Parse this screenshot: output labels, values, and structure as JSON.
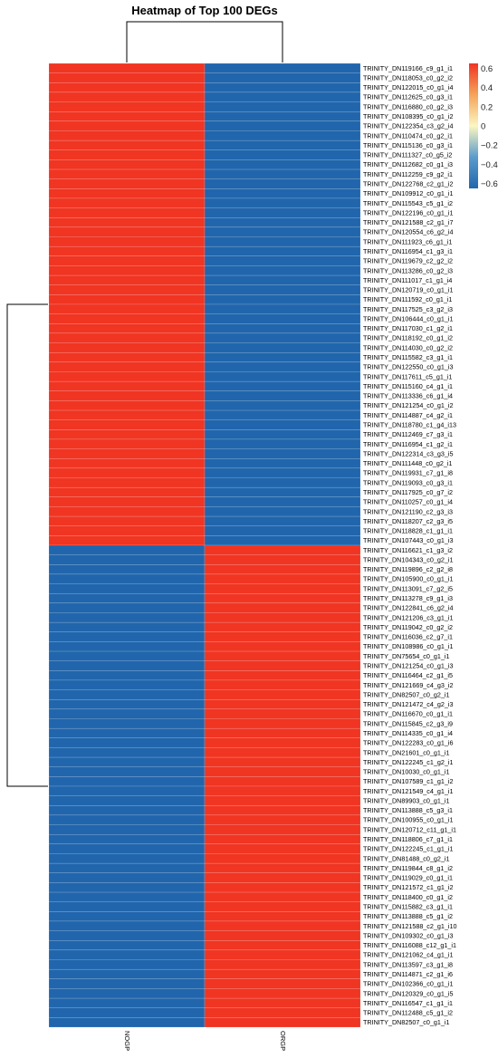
{
  "chart_data": {
    "type": "heatmap",
    "title": "Heatmap of Top 100 DEGs",
    "columns": [
      "NOGP",
      "ORGP"
    ],
    "rows": [
      "TRINITY_DN119166_c9_g1_i1",
      "TRINITY_DN118053_c0_g2_i2",
      "TRINITY_DN122015_c0_g1_i4",
      "TRINITY_DN112625_c0_g3_i1",
      "TRINITY_DN116880_c0_g2_i3",
      "TRINITY_DN108395_c0_g1_i2",
      "TRINITY_DN122354_c3_g2_i4",
      "TRINITY_DN110474_c0_g2_i1",
      "TRINITY_DN115136_c0_g3_i1",
      "TRINITY_DN111327_c0_g5_i2",
      "TRINITY_DN112682_c0_g1_i3",
      "TRINITY_DN112259_c9_g2_i1",
      "TRINITY_DN122768_c2_g1_i2",
      "TRINITY_DN109912_c0_g1_i1",
      "TRINITY_DN115543_c5_g1_i2",
      "TRINITY_DN122196_c0_g1_i1",
      "TRINITY_DN121588_c2_g1_i7",
      "TRINITY_DN120554_c6_g2_i4",
      "TRINITY_DN111923_c6_g1_i1",
      "TRINITY_DN116954_c1_g3_i1",
      "TRINITY_DN119679_c2_g2_i2",
      "TRINITY_DN113286_c0_g2_i3",
      "TRINITY_DN111017_c1_g1_i4",
      "TRINITY_DN120719_c0_g1_i1",
      "TRINITY_DN111592_c0_g1_i1",
      "TRINITY_DN117525_c3_g2_i3",
      "TRINITY_DN106444_c0_g1_i1",
      "TRINITY_DN117030_c1_g2_i1",
      "TRINITY_DN118192_c0_g1_i2",
      "TRINITY_DN114030_c0_g2_i2",
      "TRINITY_DN115582_c3_g1_i1",
      "TRINITY_DN122550_c0_g1_i3",
      "TRINITY_DN117611_c5_g1_i1",
      "TRINITY_DN115160_c4_g1_i1",
      "TRINITY_DN113336_c6_g1_i4",
      "TRINITY_DN121254_c0_g1_i2",
      "TRINITY_DN114887_c4_g2_i1",
      "TRINITY_DN118780_c1_g4_i13",
      "TRINITY_DN112469_c7_g3_i1",
      "TRINITY_DN116954_c1_g2_i1",
      "TRINITY_DN122314_c3_g3_i5",
      "TRINITY_DN111448_c0_g2_i1",
      "TRINITY_DN119931_c7_g1_i8",
      "TRINITY_DN119093_c0_g3_i1",
      "TRINITY_DN117925_c0_g7_i2",
      "TRINITY_DN110257_c0_g1_i4",
      "TRINITY_DN121190_c2_g3_i3",
      "TRINITY_DN118207_c2_g3_i5",
      "TRINITY_DN118828_c1_g1_i1",
      "TRINITY_DN107443_c0_g1_i3",
      "TRINITY_DN116621_c1_g3_i2",
      "TRINITY_DN104343_c0_g2_i1",
      "TRINITY_DN119896_c2_g2_i8",
      "TRINITY_DN105900_c0_g1_i1",
      "TRINITY_DN113091_c7_g2_i5",
      "TRINITY_DN113278_c9_g1_i3",
      "TRINITY_DN122841_c6_g2_i4",
      "TRINITY_DN121206_c3_g1_i1",
      "TRINITY_DN119042_c0_g2_i2",
      "TRINITY_DN116036_c2_g7_i1",
      "TRINITY_DN108986_c0_g1_i1",
      "TRINITY_DN75654_c0_g1_i1",
      "TRINITY_DN121254_c0_g1_i3",
      "TRINITY_DN116464_c2_g1_i5",
      "TRINITY_DN121669_c4_g3_i2",
      "TRINITY_DN82507_c0_g2_i1",
      "TRINITY_DN121472_c4_g2_i3",
      "TRINITY_DN116670_c0_g1_i1",
      "TRINITY_DN115845_c2_g3_i9",
      "TRINITY_DN114335_c0_g1_i4",
      "TRINITY_DN122283_c0_g1_i6",
      "TRINITY_DN21601_c0_g1_i1",
      "TRINITY_DN122245_c1_g2_i1",
      "TRINITY_DN10030_c0_g1_i1",
      "TRINITY_DN107589_c1_g1_i2",
      "TRINITY_DN121549_c4_g1_i1",
      "TRINITY_DN89903_c0_g1_i1",
      "TRINITY_DN113888_c5_g3_i1",
      "TRINITY_DN100955_c0_g1_i1",
      "TRINITY_DN120712_c11_g1_i1",
      "TRINITY_DN118806_c7_g1_i1",
      "TRINITY_DN122245_c1_g1_i1",
      "TRINITY_DN81488_c0_g2_i1",
      "TRINITY_DN119844_c8_g1_i2",
      "TRINITY_DN119029_c0_g1_i1",
      "TRINITY_DN121572_c1_g1_i2",
      "TRINITY_DN118400_c0_g1_i2",
      "TRINITY_DN115882_c3_g1_i1",
      "TRINITY_DN113888_c5_g1_i2",
      "TRINITY_DN121588_c2_g1_i10",
      "TRINITY_DN109302_c0_g1_i3",
      "TRINITY_DN116088_c12_g1_i1",
      "TRINITY_DN121062_c4_g1_i1",
      "TRINITY_DN113597_c3_g1_i8",
      "TRINITY_DN114871_c2_g1_i6",
      "TRINITY_DN102366_c0_g1_i1",
      "TRINITY_DN120329_c0_g1_i5",
      "TRINITY_DN116547_c1_g1_i1",
      "TRINITY_DN112488_c5_g1_i2",
      "TRINITY_DN82507_c0_g1_i1"
    ],
    "group_values": {
      "NOGP_high": [
        0.65,
        -0.65
      ],
      "ORGP_high": [
        -0.65,
        0.65
      ]
    },
    "up_in_NOGP_count": 50,
    "colorbar": {
      "range": [
        -0.65,
        0.65
      ],
      "ticks": [
        0.6,
        0.4,
        0.2,
        0,
        -0.2,
        -0.4,
        -0.6
      ],
      "tick_labels": [
        "0.6",
        "0.4",
        "0.2",
        "0",
        "−0.2",
        "−0.4",
        "−0.6"
      ],
      "colors": [
        "#2166ac",
        "#5b9ccc",
        "#fbf6c0",
        "#f5a35a",
        "#f03523"
      ]
    },
    "cell_colors": {
      "high": "#f03523",
      "low": "#2166ac"
    },
    "row_dendrogram": true,
    "column_dendrogram": true,
    "legend_position": "top-right",
    "xlabel": "",
    "ylabel": ""
  }
}
